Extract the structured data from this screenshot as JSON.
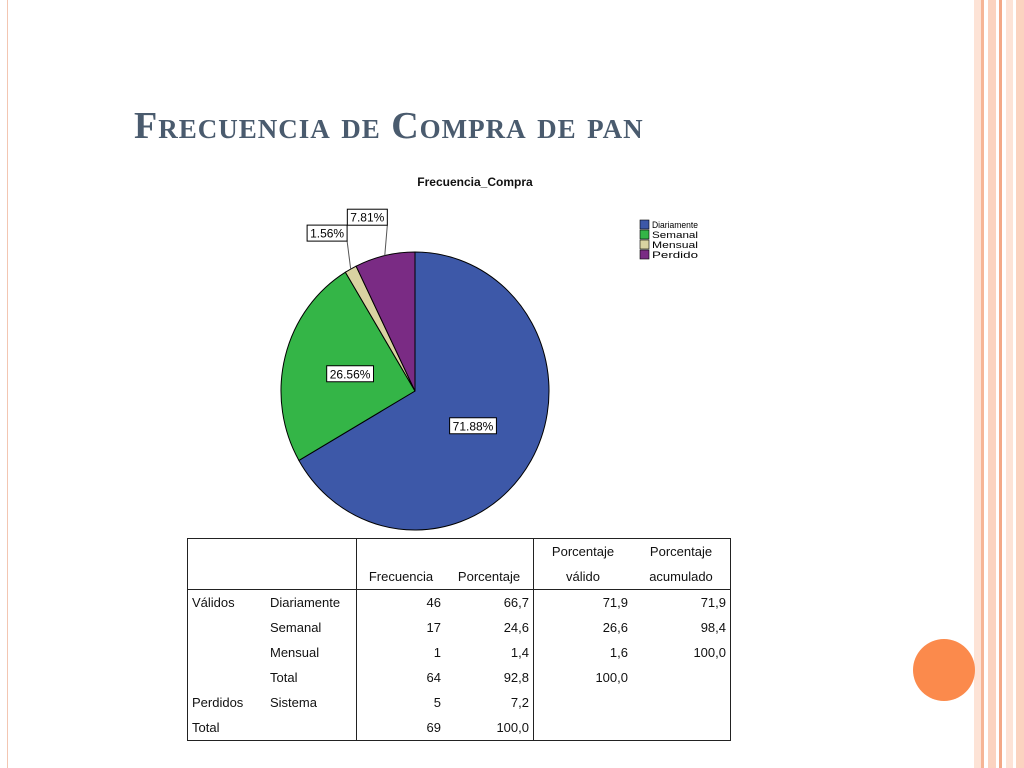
{
  "slide": {
    "title": "Frecuencia de Compra de pan",
    "colors": {
      "title": "#4a5b6e",
      "accent_circle": "#fb8a4c",
      "border": "#f3c6b2"
    }
  },
  "chart_data": {
    "type": "pie",
    "title": "Frecuencia_Compra",
    "legend_position": "top-right",
    "slices": [
      {
        "name": "Diariamente",
        "value": 71.88,
        "label": "71.88%",
        "color": "#3d58a8"
      },
      {
        "name": "Semanal",
        "value": 26.56,
        "label": "26.56%",
        "color": "#34b547"
      },
      {
        "name": "Mensual",
        "value": 1.56,
        "label": "1.56%",
        "color": "#d9d3a1"
      },
      {
        "name": "Perdido",
        "value": 7.81,
        "label": "7.81%",
        "color": "#7a2b84"
      }
    ]
  },
  "table": {
    "headers": {
      "frecuencia": "Frecuencia",
      "porcentaje": "Porcentaje",
      "valido_1": "Porcentaje",
      "valido_2": "válido",
      "acumulado_1": "Porcentaje",
      "acumulado_2": "acumulado"
    },
    "rows": [
      {
        "group": "Válidos",
        "category": "Diariamente",
        "frecuencia": "46",
        "porcentaje": "66,7",
        "valido": "71,9",
        "acumulado": "71,9"
      },
      {
        "group": "",
        "category": "Semanal",
        "frecuencia": "17",
        "porcentaje": "24,6",
        "valido": "26,6",
        "acumulado": "98,4"
      },
      {
        "group": "",
        "category": "Mensual",
        "frecuencia": "1",
        "porcentaje": "1,4",
        "valido": "1,6",
        "acumulado": "100,0"
      },
      {
        "group": "",
        "category": "Total",
        "frecuencia": "64",
        "porcentaje": "92,8",
        "valido": "100,0",
        "acumulado": ""
      },
      {
        "group": "Perdidos",
        "category": "Sistema",
        "frecuencia": "5",
        "porcentaje": "7,2",
        "valido": "",
        "acumulado": ""
      },
      {
        "group": "Total",
        "category": "",
        "frecuencia": "69",
        "porcentaje": "100,0",
        "valido": "",
        "acumulado": ""
      }
    ]
  }
}
